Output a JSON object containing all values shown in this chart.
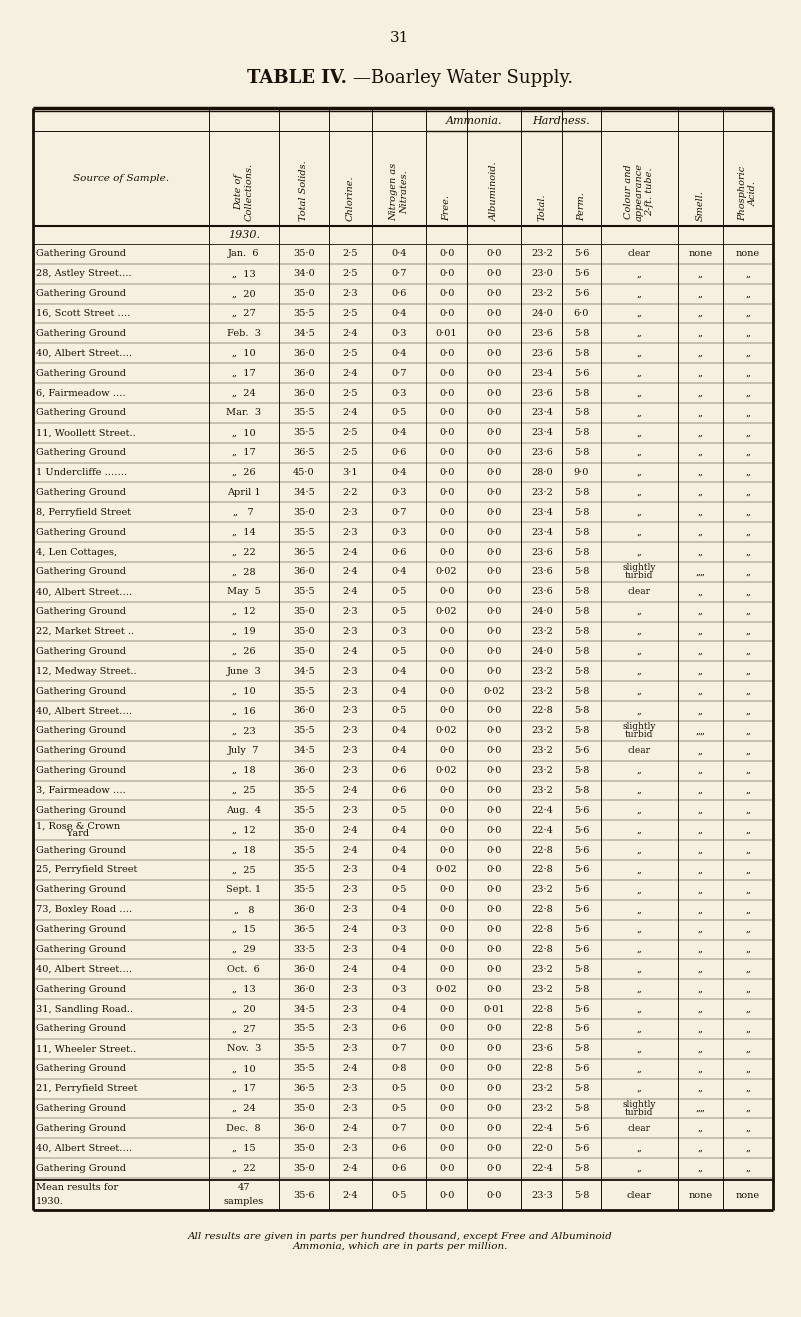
{
  "page_number": "31",
  "title_bold": "TABLE IV.",
  "title_rest": "—Boarley Water Supply.",
  "bg_color": "#f5f0e0",
  "footer": "All results are given in parts per hundred thousand, except Free and Albuminoid\nAmmonia, which are in parts per million.",
  "col_header_group1": "Ammonia.",
  "col_header_group2": "Hardness.",
  "col_headers": [
    "Source of Sample.",
    "Date of\nCollections.",
    "Total Solids.",
    "Chlorine.",
    "Nitrogen as\nNitrates.",
    "Free.",
    "Albuminoid.",
    "Total.",
    "Perm.",
    "Colour and\nappearance\n2-ft. tube.",
    "Smell.",
    "Phosphoric\nAcid."
  ],
  "year_label": "1930.",
  "rows": [
    [
      "Gathering Ground",
      "Jan.  6",
      "35·0",
      "2·5",
      "0·4",
      "0·0",
      "0·0",
      "23·2",
      "5·6",
      "clear",
      "none",
      "none"
    ],
    [
      "28, Astley Street….",
      "„  13",
      "34·0",
      "2·5",
      "0·7",
      "0·0",
      "0·0",
      "23·0",
      "5·6",
      "„",
      "„",
      "„"
    ],
    [
      "Gathering Ground",
      "„  20",
      "35·0",
      "2·3",
      "0·6",
      "0·0",
      "0·0",
      "23·2",
      "5·6",
      "„",
      "„",
      "„"
    ],
    [
      "16, Scott Street ….",
      "„  27",
      "35·5",
      "2·5",
      "0·4",
      "0·0",
      "0·0",
      "24·0",
      "6·0",
      "„",
      "„",
      "„"
    ],
    [
      "Gathering Ground",
      "Feb.  3",
      "34·5",
      "2·4",
      "0·3",
      "0·01",
      "0·0",
      "23·6",
      "5·8",
      "„",
      "„",
      "„"
    ],
    [
      "40, Albert Street….",
      "„  10",
      "36·0",
      "2·5",
      "0·4",
      "0·0",
      "0·0",
      "23·6",
      "5·8",
      "„",
      "„",
      "„"
    ],
    [
      "Gathering Ground",
      "„  17",
      "36·0",
      "2·4",
      "0·7",
      "0·0",
      "0·0",
      "23·4",
      "5·6",
      "„",
      "„",
      "„"
    ],
    [
      "6, Fairmeadow ….",
      "„  24",
      "36·0",
      "2·5",
      "0·3",
      "0·0",
      "0·0",
      "23·6",
      "5·8",
      "„",
      "„",
      "„"
    ],
    [
      "Gathering Ground",
      "Mar.  3",
      "35·5",
      "2·4",
      "0·5",
      "0·0",
      "0·0",
      "23·4",
      "5·8",
      "„",
      "„",
      "„"
    ],
    [
      "11, Woollett Street..",
      "„  10",
      "35·5",
      "2·5",
      "0·4",
      "0·0",
      "0·0",
      "23·4",
      "5·8",
      "„",
      "„",
      "„"
    ],
    [
      "Gathering Ground",
      "„  17",
      "36·5",
      "2·5",
      "0·6",
      "0·0",
      "0·0",
      "23·6",
      "5·8",
      "„",
      "„",
      "„"
    ],
    [
      "1 Undercliffe …….",
      "„  26",
      "45·0",
      "3·1",
      "0·4",
      "0·0",
      "0·0",
      "28·0",
      "9·0",
      "„",
      "„",
      "„"
    ],
    [
      "Gathering Ground",
      "April 1",
      "34·5",
      "2·2",
      "0·3",
      "0·0",
      "0·0",
      "23·2",
      "5·8",
      "„",
      "„",
      "„"
    ],
    [
      "8, Perryfield Street",
      "„   7",
      "35·0",
      "2·3",
      "0·7",
      "0·0",
      "0·0",
      "23·4",
      "5·8",
      "„",
      "„",
      "„"
    ],
    [
      "Gathering Ground",
      "„  14",
      "35·5",
      "2·3",
      "0·3",
      "0·0",
      "0·0",
      "23·4",
      "5·8",
      "„",
      "„",
      "„"
    ],
    [
      "4, Len Cottages,",
      "„  22",
      "36·5",
      "2·4",
      "0·6",
      "0·0",
      "0·0",
      "23·6",
      "5·8",
      "„",
      "„",
      "„"
    ],
    [
      "Gathering Ground",
      "„  28",
      "36·0",
      "2·4",
      "0·4",
      "0·02",
      "0·0",
      "23·6",
      "5·8",
      "slightly\nturbid",
      "„„",
      "„"
    ],
    [
      "40, Albert Street….",
      "May  5",
      "35·5",
      "2·4",
      "0·5",
      "0·0",
      "0·0",
      "23·6",
      "5·8",
      "clear",
      "„",
      "„"
    ],
    [
      "Gathering Ground",
      "„  12",
      "35·0",
      "2·3",
      "0·5",
      "0·02",
      "0·0",
      "24·0",
      "5·8",
      "„",
      "„",
      "„"
    ],
    [
      "22, Market Street ..",
      "„  19",
      "35·0",
      "2·3",
      "0·3",
      "0·0",
      "0·0",
      "23·2",
      "5·8",
      "„",
      "„",
      "„"
    ],
    [
      "Gathering Ground",
      "„  26",
      "35·0",
      "2·4",
      "0·5",
      "0·0",
      "0·0",
      "24·0",
      "5·8",
      "„",
      "„",
      "„"
    ],
    [
      "12, Medway Street..",
      "June  3",
      "34·5",
      "2·3",
      "0·4",
      "0·0",
      "0·0",
      "23·2",
      "5·8",
      "„",
      "„",
      "„"
    ],
    [
      "Gathering Ground",
      "„  10",
      "35·5",
      "2·3",
      "0·4",
      "0·0",
      "0·02",
      "23·2",
      "5·8",
      "„",
      "„",
      "„"
    ],
    [
      "40, Albert Street….",
      "„  16",
      "36·0",
      "2·3",
      "0·5",
      "0·0",
      "0·0",
      "22·8",
      "5·8",
      "„",
      "„",
      "„"
    ],
    [
      "Gathering Ground",
      "„  23",
      "35·5",
      "2·3",
      "0·4",
      "0·02",
      "0·0",
      "23·2",
      "5·8",
      "slightly\nturbid",
      "„„",
      "„"
    ],
    [
      "Gathering Ground",
      "July  7",
      "34·5",
      "2·3",
      "0·4",
      "0·0",
      "0·0",
      "23·2",
      "5·6",
      "clear",
      "„",
      "„"
    ],
    [
      "Gathering Ground",
      "„  18",
      "36·0",
      "2·3",
      "0·6",
      "0·02",
      "0·0",
      "23·2",
      "5·8",
      "„",
      "„",
      "„"
    ],
    [
      "3, Fairmeadow ….",
      "„  25",
      "35·5",
      "2·4",
      "0·6",
      "0·0",
      "0·0",
      "23·2",
      "5·8",
      "„",
      "„",
      "„"
    ],
    [
      "Gathering Ground",
      "Aug.  4",
      "35·5",
      "2·3",
      "0·5",
      "0·0",
      "0·0",
      "22·4",
      "5·6",
      "„",
      "„",
      "„"
    ],
    [
      "1, Rose & Crown\n     Yard",
      "„  12",
      "35·0",
      "2·4",
      "0·4",
      "0·0",
      "0·0",
      "22·4",
      "5·6",
      "„",
      "„",
      "„"
    ],
    [
      "Gathering Ground",
      "„  18",
      "35·5",
      "2·4",
      "0·4",
      "0·0",
      "0·0",
      "22·8",
      "5·6",
      "„",
      "„",
      "„"
    ],
    [
      "25, Perryfield Street",
      "„  25",
      "35·5",
      "2·3",
      "0·4",
      "0·02",
      "0·0",
      "22·8",
      "5·6",
      "„",
      "„",
      "„"
    ],
    [
      "Gathering Ground",
      "Sept. 1",
      "35·5",
      "2·3",
      "0·5",
      "0·0",
      "0·0",
      "23·2",
      "5·6",
      "„",
      "„",
      "„"
    ],
    [
      "73, Boxley Road ….",
      "„   8",
      "36·0",
      "2·3",
      "0·4",
      "0·0",
      "0·0",
      "22·8",
      "5·6",
      "„",
      "„",
      "„"
    ],
    [
      "Gathering Ground",
      "„  15",
      "36·5",
      "2·4",
      "0·3",
      "0·0",
      "0·0",
      "22·8",
      "5·6",
      "„",
      "„",
      "„"
    ],
    [
      "Gathering Ground",
      "„  29",
      "33·5",
      "2·3",
      "0·4",
      "0·0",
      "0·0",
      "22·8",
      "5·6",
      "„",
      "„",
      "„"
    ],
    [
      "40, Albert Street….",
      "Oct.  6",
      "36·0",
      "2·4",
      "0·4",
      "0·0",
      "0·0",
      "23·2",
      "5·8",
      "„",
      "„",
      "„"
    ],
    [
      "Gathering Ground",
      "„  13",
      "36·0",
      "2·3",
      "0·3",
      "0·02",
      "0·0",
      "23·2",
      "5·8",
      "„",
      "„",
      "„"
    ],
    [
      "31, Sandling Road..",
      "„  20",
      "34·5",
      "2·3",
      "0·4",
      "0·0",
      "0·01",
      "22·8",
      "5·6",
      "„",
      "„",
      "„"
    ],
    [
      "Gathering Ground",
      "„  27",
      "35·5",
      "2·3",
      "0·6",
      "0·0",
      "0·0",
      "22·8",
      "5·6",
      "„",
      "„",
      "„"
    ],
    [
      "11, Wheeler Street..",
      "Nov.  3",
      "35·5",
      "2·3",
      "0·7",
      "0·0",
      "0·0",
      "23·6",
      "5·8",
      "„",
      "„",
      "„"
    ],
    [
      "Gathering Ground",
      "„  10",
      "35·5",
      "2·4",
      "0·8",
      "0·0",
      "0·0",
      "22·8",
      "5·6",
      "„",
      "„",
      "„"
    ],
    [
      "21, Perryfield Street",
      "„  17",
      "36·5",
      "2·3",
      "0·5",
      "0·0",
      "0·0",
      "23·2",
      "5·8",
      "„",
      "„",
      "„"
    ],
    [
      "Gathering Ground",
      "„  24",
      "35·0",
      "2·3",
      "0·5",
      "0·0",
      "0·0",
      "23·2",
      "5·8",
      "slightly\nturbid",
      "„„",
      "„"
    ],
    [
      "Gathering Ground",
      "Dec.  8",
      "36·0",
      "2·4",
      "0·7",
      "0·0",
      "0·0",
      "22·4",
      "5·6",
      "clear",
      "„",
      "„"
    ],
    [
      "40, Albert Street….",
      "„  15",
      "35·0",
      "2·3",
      "0·6",
      "0·0",
      "0·0",
      "22·0",
      "5·6",
      "„",
      "„",
      "„"
    ],
    [
      "Gathering Ground",
      "„  22",
      "35·0",
      "2·4",
      "0·6",
      "0·0",
      "0·0",
      "22·4",
      "5·8",
      "„",
      "„",
      "„"
    ]
  ],
  "mean_row": [
    "Mean results for",
    "1930.",
    "47",
    "samples",
    "35·6",
    "2·4",
    "0·5",
    "0·0",
    "0·0",
    "23·3",
    "5·8",
    "clear",
    "none",
    "none"
  ]
}
